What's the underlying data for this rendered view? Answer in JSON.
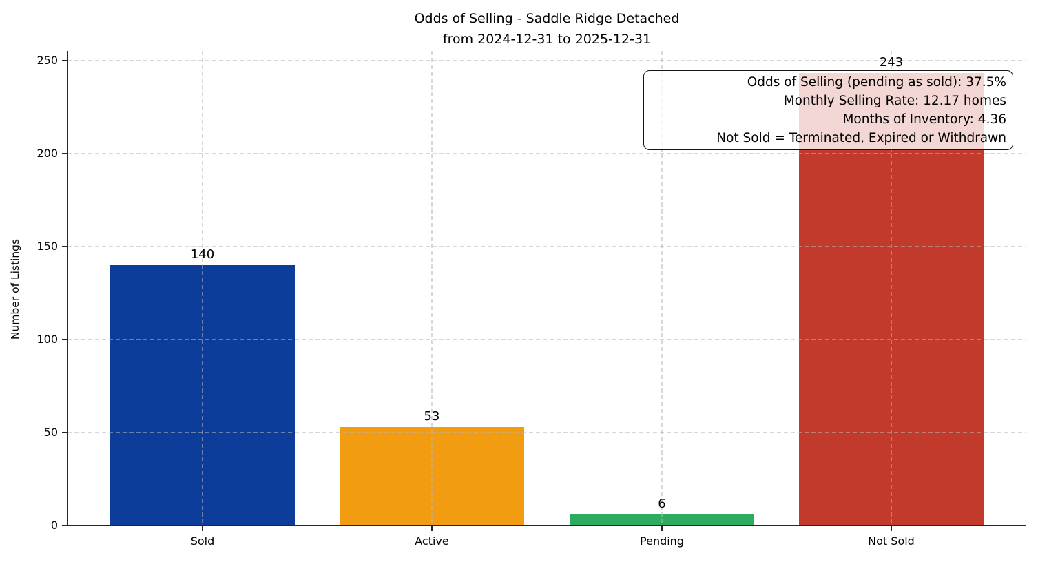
{
  "title": {
    "line1": "Odds of Selling - Saddle Ridge Detached",
    "line2": "from 2024-12-31 to 2025-12-31"
  },
  "chart_data": {
    "type": "bar",
    "title": "Odds of Selling - Saddle Ridge Detached\nfrom 2024-12-31 to 2025-12-31",
    "categories": [
      "Sold",
      "Active",
      "Pending",
      "Not Sold"
    ],
    "values": [
      140,
      53,
      6,
      243
    ],
    "bar_colors": [
      "#0d3d9b",
      "#f29c11",
      "#2dab5e",
      "#c23a2c"
    ],
    "xlabel": "",
    "ylabel": "Number of Listings",
    "ylim": [
      0,
      255
    ],
    "yticks": [
      0,
      50,
      100,
      150,
      200,
      250
    ],
    "grid": {
      "horizontal": true,
      "vertical": true,
      "style": "dashed"
    },
    "annotation": {
      "position": "top-right",
      "lines": [
        "Odds of Selling (pending as sold): 37.5%",
        "Monthly Selling Rate: 12.17 homes",
        "Months of Inventory: 4.36",
        "Not Sold = Terminated, Expired or Withdrawn"
      ]
    }
  }
}
